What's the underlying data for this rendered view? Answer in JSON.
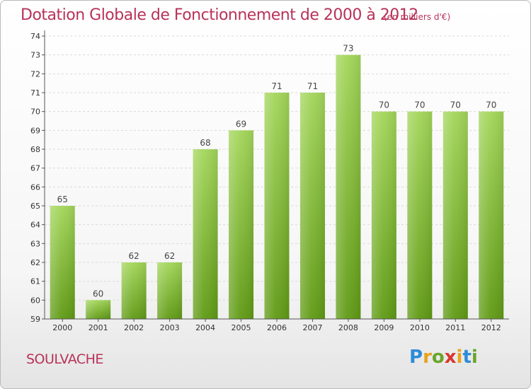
{
  "header": {
    "title": "Dotation Globale de Fonctionnement de 2000 à 2012",
    "unit": "(en milliers d'€)"
  },
  "footer": {
    "commune": "SOULVACHE",
    "logo_letters": [
      "P",
      "r",
      "o",
      "x",
      "i",
      "t",
      "i"
    ],
    "logo_colors": [
      "#2e8bd8",
      "#e8a21c",
      "#6aa52a",
      "#d9362f",
      "#e8a21c",
      "#2e8bd8",
      "#6aa52a"
    ]
  },
  "colors": {
    "bar_top": "#a3d65a",
    "bar_bottom": "#5f9a14",
    "text": "#b8325a",
    "axis": "#555555",
    "grid": "#d9d9d9"
  },
  "chart_data": {
    "type": "bar",
    "categories": [
      "2000",
      "2001",
      "2002",
      "2003",
      "2004",
      "2005",
      "2006",
      "2007",
      "2008",
      "2009",
      "2010",
      "2011",
      "2012"
    ],
    "values": [
      65,
      60,
      62,
      62,
      68,
      69,
      71,
      71,
      73,
      70,
      70,
      70,
      70
    ],
    "ylim": [
      59,
      74
    ],
    "yticks": [
      59,
      60,
      61,
      62,
      63,
      64,
      65,
      66,
      67,
      68,
      69,
      70,
      71,
      72,
      73,
      74
    ],
    "grid": true,
    "data_labels": true
  }
}
